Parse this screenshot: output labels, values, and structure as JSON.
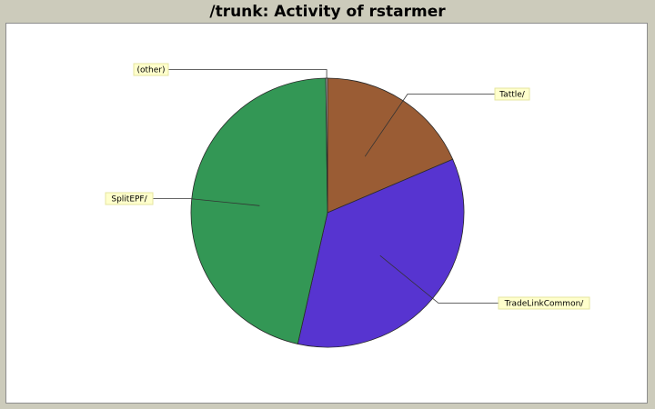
{
  "chart_data": {
    "type": "pie",
    "title": "/trunk: Activity of rstarmer",
    "slices": [
      {
        "name": "Tattle/",
        "value": 18.5,
        "color": "#9a5c34"
      },
      {
        "name": "TradeLinkCommon/",
        "value": 35.0,
        "color": "#5734d0"
      },
      {
        "name": "SplitEPF/",
        "value": 46.3,
        "color": "#339755"
      },
      {
        "name": "(other)",
        "value": 0.2,
        "color": "#bbbbbb"
      }
    ],
    "legend": "none"
  }
}
